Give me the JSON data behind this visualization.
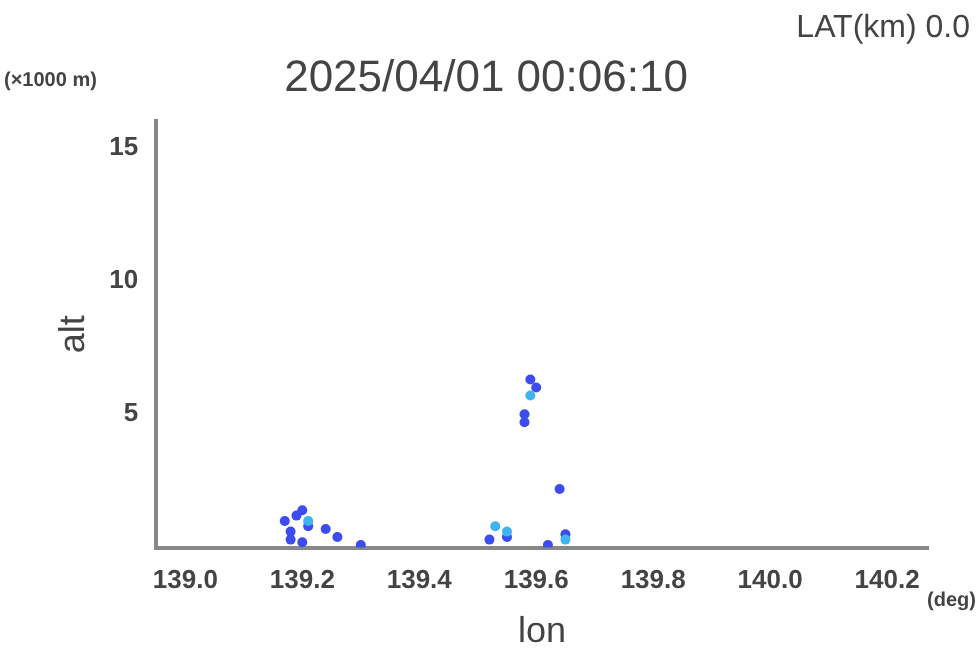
{
  "chart_data": {
    "type": "scatter",
    "title": "2025/04/01 00:06:10",
    "xlabel": "lon",
    "ylabel": "alt",
    "annotations": [
      "LAT(km) 0.0",
      "(×1000 m)",
      "(deg)"
    ],
    "series": [
      {
        "color": "#3c4cf0",
        "x": [
          139.17,
          139.18,
          139.19,
          139.2,
          139.21,
          139.18,
          139.2,
          139.24,
          139.26,
          139.3,
          139.52,
          139.55,
          139.58,
          139.59,
          139.6,
          139.58,
          139.64,
          139.62,
          139.65
        ],
        "values": [
          1.0,
          0.6,
          1.2,
          1.4,
          0.8,
          0.3,
          0.2,
          0.7,
          0.4,
          0.1,
          0.3,
          0.4,
          5.0,
          6.3,
          6.0,
          4.7,
          2.2,
          0.1,
          0.5
        ]
      },
      {
        "color": "#40b4f0",
        "x": [
          139.21,
          139.53,
          139.55,
          139.59,
          139.65
        ],
        "values": [
          1.0,
          0.8,
          0.6,
          5.7,
          0.3
        ]
      }
    ],
    "xlim": [
      138.95,
      140.27
    ],
    "xticks": [
      {
        "value": 139.0,
        "label": "139.0"
      },
      {
        "value": 139.2,
        "label": "139.2"
      },
      {
        "value": 139.4,
        "label": "139.4"
      },
      {
        "value": 139.6,
        "label": "139.6"
      },
      {
        "value": 139.8,
        "label": "139.8"
      },
      {
        "value": 140.0,
        "label": "140.0"
      },
      {
        "value": 140.2,
        "label": "140.2"
      }
    ],
    "ylim": [
      0,
      16
    ],
    "yticks": [
      5,
      10,
      15
    ],
    "grid": false,
    "legend": false,
    "marker": "circle"
  }
}
